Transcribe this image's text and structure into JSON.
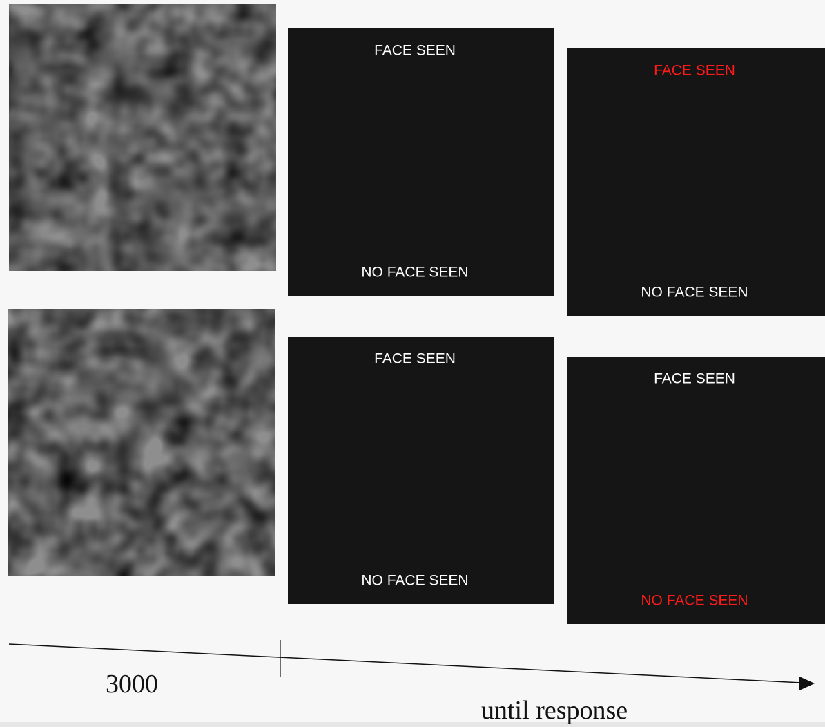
{
  "trials": [
    {
      "response_screens": [
        {
          "top": {
            "text": "FACE SEEN",
            "color": "#ffffff"
          },
          "bottom": {
            "text": "NO FACE SEEN",
            "color": "#ffffff"
          }
        },
        {
          "top": {
            "text": "FACE SEEN",
            "color": "#ff1a1a"
          },
          "bottom": {
            "text": "NO FACE SEEN",
            "color": "#ffffff"
          }
        }
      ]
    },
    {
      "response_screens": [
        {
          "top": {
            "text": "FACE SEEN",
            "color": "#ffffff"
          },
          "bottom": {
            "text": "NO FACE SEEN",
            "color": "#ffffff"
          }
        },
        {
          "top": {
            "text": "FACE SEEN",
            "color": "#ffffff"
          },
          "bottom": {
            "text": "NO FACE SEEN",
            "color": "#ff1a1a"
          }
        }
      ]
    }
  ],
  "timeline": {
    "noise_duration": "3000",
    "response_duration": "until response"
  }
}
